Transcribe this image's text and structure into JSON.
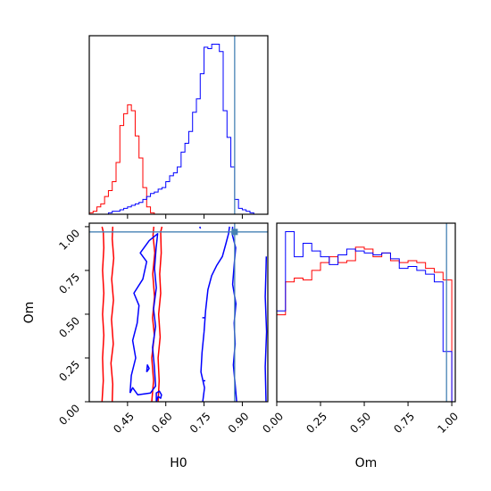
{
  "chart_data": {
    "type": "corner",
    "parameters": [
      "H0",
      "Om"
    ],
    "truth": {
      "H0": 0.87,
      "Om": 0.97
    },
    "truth_color": "#4682b4",
    "series": [
      {
        "color": "#ff0000"
      },
      {
        "color": "#0000ff"
      }
    ],
    "panels": {
      "h0_hist": {
        "xlim": [
          0.3,
          1.0
        ],
        "xticks": [
          0.45,
          0.6,
          0.75,
          0.9
        ],
        "bin_edges": [
          0.3,
          0.315,
          0.33,
          0.345,
          0.36,
          0.375,
          0.39,
          0.405,
          0.42,
          0.435,
          0.45,
          0.465,
          0.48,
          0.495,
          0.51,
          0.525,
          0.54,
          0.555,
          0.57,
          0.585,
          0.6,
          0.615,
          0.63,
          0.645,
          0.66,
          0.675,
          0.69,
          0.705,
          0.72,
          0.735,
          0.75,
          0.765,
          0.78,
          0.795,
          0.81,
          0.825,
          0.84,
          0.855,
          0.87,
          0.885,
          0.9,
          0.915,
          0.93,
          0.945,
          0.96,
          0.975,
          0.99
        ],
        "red_counts": [
          1,
          2,
          5,
          7,
          12,
          16,
          22,
          35,
          60,
          68,
          74,
          70,
          53,
          38,
          18,
          5,
          1,
          0,
          0,
          0,
          0,
          0,
          0,
          0,
          0,
          0,
          0,
          0,
          0,
          0,
          0,
          0,
          0,
          0,
          0,
          0,
          0,
          0,
          0,
          0,
          0,
          0,
          0,
          0,
          0,
          0
        ],
        "blue_counts": [
          0,
          0,
          0,
          0,
          0,
          1,
          2,
          2,
          3,
          4,
          5,
          6,
          7,
          8,
          10,
          12,
          14,
          15,
          17,
          18,
          22,
          26,
          28,
          32,
          42,
          48,
          56,
          69,
          78,
          95,
          113,
          112,
          115,
          115,
          110,
          70,
          52,
          32,
          10,
          4,
          3,
          2,
          1,
          0,
          0,
          0
        ]
      },
      "om_hist": {
        "xlim": [
          0.0,
          1.02
        ],
        "xticks": [
          0.0,
          0.25,
          0.5,
          0.75,
          1.0
        ],
        "tick_labels": [
          "0.00",
          "0.25",
          "0.50",
          "0.75",
          "1.00"
        ],
        "bin_edges": [
          0.0,
          0.05,
          0.1,
          0.15,
          0.2,
          0.25,
          0.3,
          0.35,
          0.4,
          0.45,
          0.5,
          0.55,
          0.6,
          0.65,
          0.7,
          0.75,
          0.8,
          0.85,
          0.9,
          0.95,
          1.0
        ],
        "red_counts": [
          45,
          62,
          64,
          63,
          68,
          72,
          75,
          72,
          73,
          80,
          79,
          75,
          77,
          73,
          72,
          73,
          72,
          69,
          67,
          63
        ],
        "blue_counts": [
          47,
          88,
          75,
          82,
          78,
          75,
          71,
          76,
          79,
          78,
          77,
          76,
          77,
          74,
          69,
          70,
          68,
          66,
          62,
          26
        ]
      },
      "joint": {
        "xlim": [
          0.3,
          1.0
        ],
        "ylim": [
          0.0,
          1.02
        ],
        "xticks": [
          0.45,
          0.6,
          0.75,
          0.9
        ],
        "yticks": [
          0.0,
          0.25,
          0.5,
          0.75,
          1.0
        ],
        "xtick_labels": [
          "0.45",
          "0.60",
          "0.75",
          "0.90"
        ],
        "ytick_labels": [
          "0.00",
          "0.25",
          "0.50",
          "0.75",
          "1.00"
        ],
        "xlabel": "H0",
        "ylabel": "Om",
        "contours": [
          {
            "series": 0,
            "points": [
              [
                0.35,
                0.0
              ],
              [
                0.355,
                0.12
              ],
              [
                0.352,
                0.25
              ],
              [
                0.357,
                0.38
              ],
              [
                0.352,
                0.5
              ],
              [
                0.357,
                0.62
              ],
              [
                0.352,
                0.75
              ],
              [
                0.357,
                0.88
              ],
              [
                0.355,
                0.97
              ],
              [
                0.35,
                1.0
              ]
            ]
          },
          {
            "series": 0,
            "points": [
              [
                0.39,
                0.0
              ],
              [
                0.392,
                0.1
              ],
              [
                0.385,
                0.22
              ],
              [
                0.394,
                0.33
              ],
              [
                0.387,
                0.47
              ],
              [
                0.395,
                0.58
              ],
              [
                0.388,
                0.7
              ],
              [
                0.396,
                0.82
              ],
              [
                0.39,
                0.93
              ],
              [
                0.392,
                1.0
              ]
            ]
          },
          {
            "series": 0,
            "points": [
              [
                0.545,
                0.0
              ],
              [
                0.552,
                0.12
              ],
              [
                0.545,
                0.25
              ],
              [
                0.555,
                0.38
              ],
              [
                0.548,
                0.48
              ],
              [
                0.556,
                0.6
              ],
              [
                0.549,
                0.73
              ],
              [
                0.557,
                0.85
              ],
              [
                0.55,
                0.95
              ],
              [
                0.553,
                1.0
              ]
            ]
          },
          {
            "series": 0,
            "points": [
              [
                0.57,
                0.0
              ],
              [
                0.574,
                0.12
              ],
              [
                0.57,
                0.25
              ],
              [
                0.578,
                0.37
              ],
              [
                0.572,
                0.5
              ],
              [
                0.58,
                0.62
              ],
              [
                0.576,
                0.73
              ],
              [
                0.582,
                0.85
              ],
              [
                0.58,
                0.97
              ],
              [
                0.585,
                1.0
              ]
            ]
          },
          {
            "series": 1,
            "points": [
              [
                0.46,
                0.05
              ],
              [
                0.47,
                0.08
              ],
              [
                0.49,
                0.04
              ],
              [
                0.54,
                0.05
              ],
              [
                0.56,
                0.09
              ],
              [
                0.555,
                0.2
              ],
              [
                0.548,
                0.31
              ],
              [
                0.56,
                0.43
              ],
              [
                0.552,
                0.53
              ],
              [
                0.563,
                0.65
              ],
              [
                0.556,
                0.76
              ],
              [
                0.562,
                0.88
              ],
              [
                0.568,
                0.96
              ],
              [
                0.535,
                0.92
              ],
              [
                0.5,
                0.85
              ],
              [
                0.525,
                0.8
              ],
              [
                0.51,
                0.7
              ],
              [
                0.475,
                0.62
              ],
              [
                0.495,
                0.55
              ],
              [
                0.488,
                0.45
              ],
              [
                0.47,
                0.35
              ],
              [
                0.482,
                0.25
              ],
              [
                0.465,
                0.15
              ],
              [
                0.46,
                0.05
              ]
            ]
          },
          {
            "series": 1,
            "points": [
              [
                0.745,
                0.0
              ],
              [
                0.752,
                0.08
              ],
              [
                0.738,
                0.17
              ],
              [
                0.742,
                0.28
              ],
              [
                0.75,
                0.4
              ],
              [
                0.756,
                0.52
              ],
              [
                0.765,
                0.64
              ],
              [
                0.78,
                0.72
              ],
              [
                0.8,
                0.78
              ],
              [
                0.822,
                0.83
              ],
              [
                0.835,
                0.9
              ],
              [
                0.846,
                0.96
              ],
              [
                0.85,
                1.0
              ]
            ]
          },
          {
            "series": 1,
            "points": [
              [
                0.878,
                0.0
              ],
              [
                0.872,
                0.1
              ],
              [
                0.865,
                0.21
              ],
              [
                0.872,
                0.33
              ],
              [
                0.868,
                0.45
              ],
              [
                0.875,
                0.56
              ],
              [
                0.862,
                0.67
              ],
              [
                0.868,
                0.78
              ],
              [
                0.874,
                0.88
              ],
              [
                0.86,
                0.96
              ],
              [
                0.862,
                1.0
              ]
            ]
          },
          {
            "series": 1,
            "points": [
              [
                0.993,
                0.0
              ],
              [
                0.99,
                0.2
              ],
              [
                0.995,
                0.4
              ],
              [
                0.99,
                0.6
              ],
              [
                0.993,
                0.76
              ],
              [
                0.994,
                0.83
              ]
            ]
          },
          {
            "series": 1,
            "points": [
              [
                0.563,
                0.0
              ],
              [
                0.57,
                0.03
              ],
              [
                0.58,
                0.02
              ],
              [
                0.583,
                0.04
              ],
              [
                0.575,
                0.06
              ],
              [
                0.563,
                0.05
              ],
              [
                0.563,
                0.0
              ]
            ]
          },
          {
            "series": 1,
            "points": [
              [
                0.525,
                0.17
              ],
              [
                0.535,
                0.19
              ],
              [
                0.528,
                0.21
              ],
              [
                0.525,
                0.17
              ]
            ]
          },
          {
            "series": 1,
            "points": [
              [
                0.745,
                0.12
              ],
              [
                0.755,
                0.12
              ]
            ]
          },
          {
            "series": 1,
            "points": [
              [
                0.743,
                0.48
              ],
              [
                0.752,
                0.48
              ]
            ]
          },
          {
            "series": 1,
            "points": [
              [
                0.733,
                1.0
              ],
              [
                0.736,
                0.99
              ]
            ]
          }
        ]
      }
    }
  }
}
